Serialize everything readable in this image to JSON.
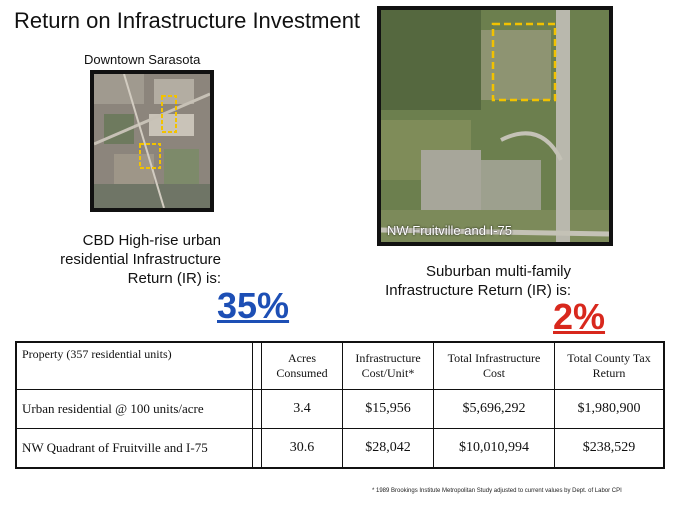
{
  "title": "Return on Infrastructure Investment",
  "downtown": {
    "caption": "Downtown Sarasota",
    "description": "CBD High-rise urban residential Infrastructure Return (IR) is:",
    "ir_value": "35%",
    "ir_color": "#1d4fb5"
  },
  "suburban": {
    "image_label": "NW Fruitville and I-75",
    "description": "Suburban multi-family Infrastructure Return (IR) is:",
    "ir_value": "2%",
    "ir_color": "#d8281d"
  },
  "table": {
    "headers": [
      "Property (357 residential units)",
      "Acres Consumed",
      "Infrastructure Cost/Unit*",
      "Total Infrastructure Cost",
      "Total County Tax Return"
    ],
    "rows": [
      [
        "Urban residential @ 100 units/acre",
        "3.4",
        "$15,956",
        "$5,696,292",
        "$1,980,900"
      ],
      [
        "NW Quadrant of Fruitville and I-75",
        "30.6",
        "$28,042",
        "$10,010,994",
        "$238,529"
      ]
    ]
  },
  "footnote": "* 1989 Brookings Institute Metropolitan Study adjusted to current values by Dept. of Labor CPI"
}
